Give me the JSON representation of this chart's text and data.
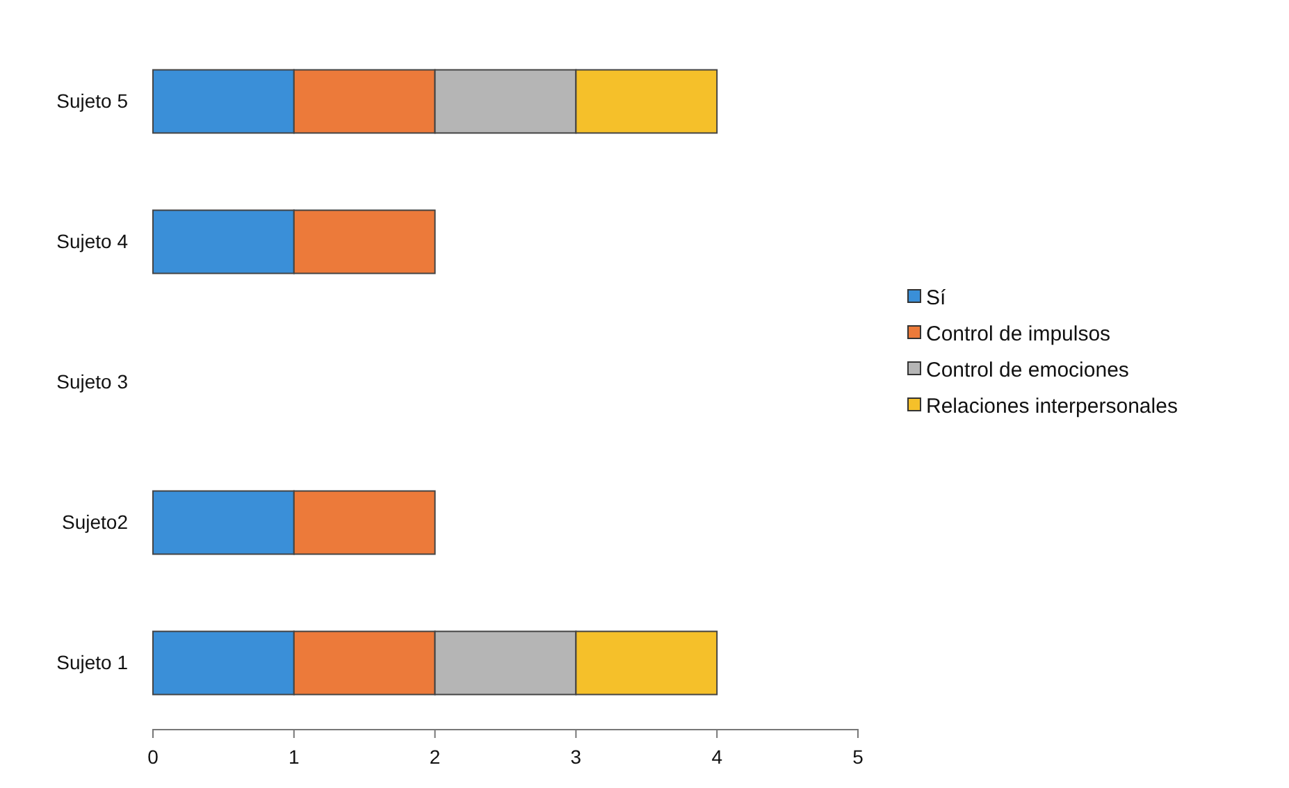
{
  "chart_data": {
    "type": "bar",
    "orientation": "horizontal",
    "stacked": true,
    "categories": [
      "Sujeto 5",
      "Sujeto 4",
      "Sujeto 3",
      "Sujeto2",
      "Sujeto 1"
    ],
    "series": [
      {
        "name": "Sí",
        "color": "#3a8fd8",
        "values": [
          1,
          1,
          null,
          1,
          1
        ]
      },
      {
        "name": "Control de impulsos",
        "color": "#ec7a3a",
        "values": [
          1,
          1,
          null,
          1,
          1
        ]
      },
      {
        "name": "Control de emociones",
        "color": "#b5b5b5",
        "values": [
          1,
          null,
          null,
          null,
          1
        ]
      },
      {
        "name": "Relaciones interpersonales",
        "color": "#f5c02a",
        "values": [
          1,
          null,
          null,
          null,
          1
        ]
      }
    ],
    "xlim": [
      0,
      5
    ],
    "xticks": [
      0,
      1,
      2,
      3,
      4,
      5
    ],
    "grid": false,
    "legend": "right"
  }
}
